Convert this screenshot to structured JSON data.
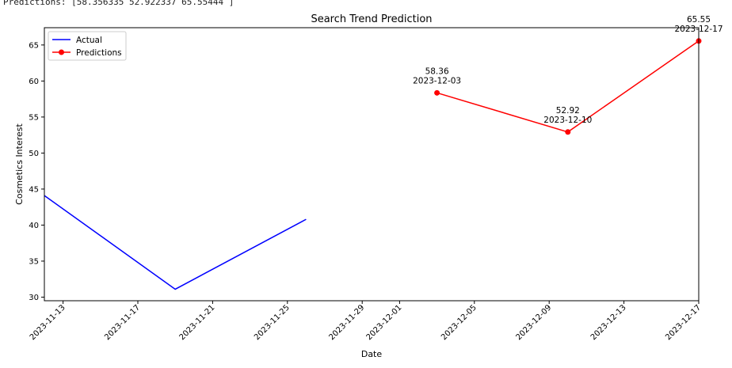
{
  "console_output": "Predictions: [58.356335 52.922337 65.55444 ]",
  "chart_data": {
    "type": "line",
    "title": "Search Trend Prediction",
    "xlabel": "Date",
    "ylabel": "Cosmetics Interest",
    "xlim": [
      "2023-11-12",
      "2023-12-17"
    ],
    "ylim": [
      29.5,
      67.4
    ],
    "x_ticks": [
      "2023-11-13",
      "2023-11-17",
      "2023-11-21",
      "2023-11-25",
      "2023-11-29",
      "2023-12-01",
      "2023-12-05",
      "2023-12-09",
      "2023-12-13",
      "2023-12-17"
    ],
    "y_ticks": [
      30,
      35,
      40,
      45,
      50,
      55,
      60,
      65
    ],
    "grid": false,
    "legend_position": "top-left",
    "series": [
      {
        "name": "Actual",
        "color": "#0000ff",
        "marker": "none",
        "points": [
          {
            "x": "2023-11-12",
            "y": 44.1
          },
          {
            "x": "2023-11-19",
            "y": 31.1
          },
          {
            "x": "2023-11-26",
            "y": 40.8
          }
        ]
      },
      {
        "name": "Predictions",
        "color": "#ff0000",
        "marker": "circle",
        "points": [
          {
            "x": "2023-12-03",
            "y": 58.356335
          },
          {
            "x": "2023-12-10",
            "y": 52.922337
          },
          {
            "x": "2023-12-17",
            "y": 65.55444
          }
        ]
      }
    ],
    "annotations": [
      {
        "x": "2023-12-03",
        "y": 58.356335,
        "value": "58.36",
        "date": "2023-12-03"
      },
      {
        "x": "2023-12-10",
        "y": 52.922337,
        "value": "52.92",
        "date": "2023-12-10"
      },
      {
        "x": "2023-12-17",
        "y": 65.55444,
        "value": "65.55",
        "date": "2023-12-17"
      }
    ]
  }
}
